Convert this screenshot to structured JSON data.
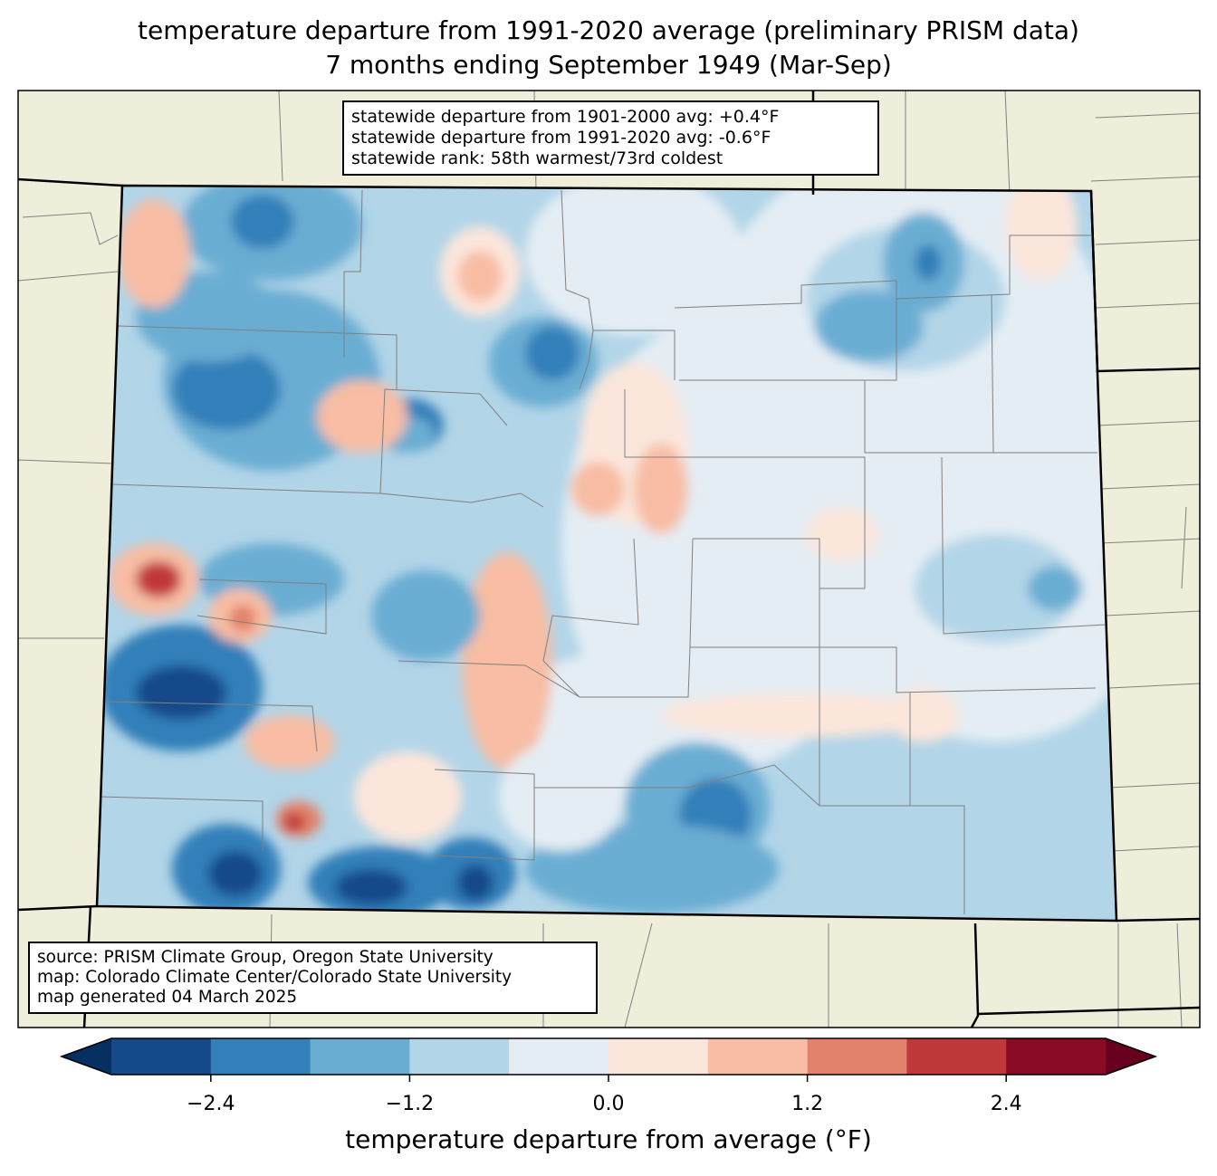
{
  "title": {
    "line1": "temperature departure from 1991-2020 average (preliminary PRISM data)",
    "line2": "7 months ending September 1949 (Mar-Sep)"
  },
  "stats": [
    "statewide departure from 1901-2000 avg: +0.4°F",
    "statewide departure from 1991-2020 avg: -0.6°F",
    "statewide rank: 58th warmest/73rd coldest"
  ],
  "source": [
    "source: PRISM Climate Group, Oregon State University",
    "map: Colorado Climate Center/Colorado State University",
    "map generated 04 March 2025"
  ],
  "chart_data": {
    "type": "heatmap",
    "region": "Colorado",
    "variable": "temperature departure from 1991-2020 average",
    "units": "°F",
    "colorbar": {
      "label": "temperature departure from average (°F)",
      "levels": [
        -3.0,
        -2.4,
        -1.8,
        -1.2,
        -0.6,
        0.0,
        0.6,
        1.2,
        1.8,
        2.4,
        3.0
      ],
      "ticks": [
        "−2.4",
        "−1.2",
        "0.0",
        "1.2",
        "2.4"
      ],
      "tick_values": [
        -2.4,
        -1.2,
        0.0,
        1.2,
        2.4
      ],
      "colors": [
        "#15498a",
        "#327fb9",
        "#6aadd3",
        "#b2d5e8",
        "#e4edf4",
        "#fbe6dc",
        "#f8bda4",
        "#e3826a",
        "#c1383b",
        "#8a0b25"
      ],
      "extend_low_color": "#053061",
      "extend_high_color": "#67001f",
      "extend": "both"
    },
    "colors": {
      "land": "#efeedb",
      "border": "#000000",
      "county": "#808080"
    }
  }
}
